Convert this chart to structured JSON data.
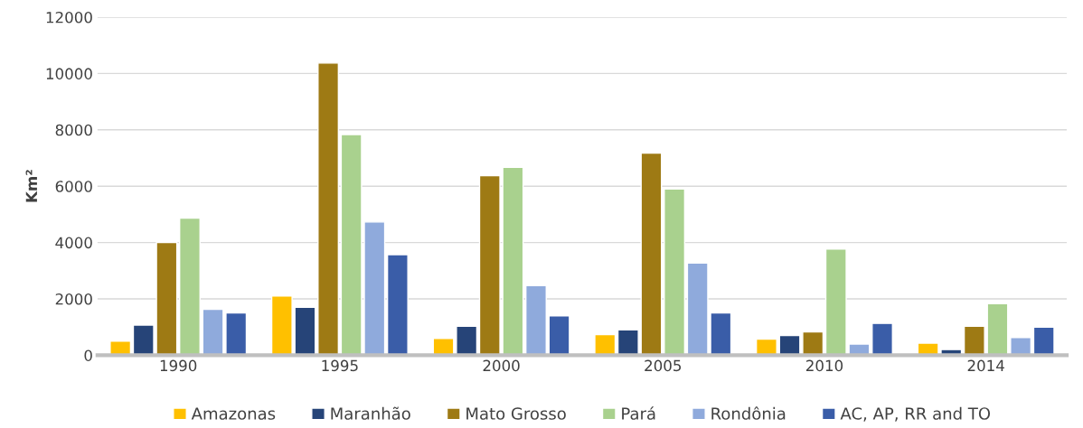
{
  "chart_data": {
    "type": "bar",
    "ylabel": "Km²",
    "categories": [
      "1990",
      "1995",
      "2000",
      "2005",
      "2010",
      "2014"
    ],
    "series": [
      {
        "name": "Amazonas",
        "color": "#ffc000",
        "values": [
          500,
          2100,
          600,
          730,
          570,
          430
        ]
      },
      {
        "name": "Maranhão",
        "color": "#264478",
        "values": [
          1070,
          1700,
          1030,
          900,
          700,
          200
        ]
      },
      {
        "name": "Mato Grosso",
        "color": "#9e7a14",
        "values": [
          4000,
          10370,
          6370,
          7170,
          830,
          1030
        ]
      },
      {
        "name": "Pará",
        "color": "#a9d18e",
        "values": [
          4870,
          7830,
          6670,
          5900,
          3770,
          1830
        ]
      },
      {
        "name": "Rondônia",
        "color": "#8faadc",
        "values": [
          1630,
          4730,
          2470,
          3270,
          400,
          630
        ]
      },
      {
        "name": "AC, AP, RR and TO",
        "color": "#3a5da8",
        "values": [
          1500,
          3570,
          1400,
          1500,
          1130,
          1000
        ]
      }
    ],
    "ylim": [
      0,
      12000
    ],
    "yticks": [
      0,
      2000,
      4000,
      6000,
      8000,
      10000,
      12000
    ],
    "grid": "y",
    "legend": "bottom"
  }
}
